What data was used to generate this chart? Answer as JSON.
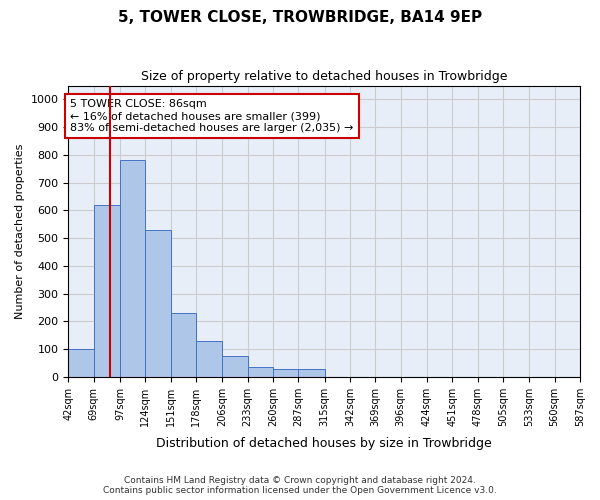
{
  "title": "5, TOWER CLOSE, TROWBRIDGE, BA14 9EP",
  "subtitle": "Size of property relative to detached houses in Trowbridge",
  "xlabel": "Distribution of detached houses by size in Trowbridge",
  "ylabel": "Number of detached properties",
  "footer_line1": "Contains HM Land Registry data © Crown copyright and database right 2024.",
  "footer_line2": "Contains public sector information licensed under the Open Government Licence v3.0.",
  "bin_labels": [
    "42sqm",
    "69sqm",
    "97sqm",
    "124sqm",
    "151sqm",
    "178sqm",
    "206sqm",
    "233sqm",
    "260sqm",
    "287sqm",
    "315sqm",
    "342sqm",
    "369sqm",
    "396sqm",
    "424sqm",
    "451sqm",
    "478sqm",
    "505sqm",
    "533sqm",
    "560sqm",
    "587sqm"
  ],
  "bar_values": [
    100,
    620,
    780,
    530,
    230,
    130,
    75,
    35,
    27,
    28,
    0,
    0,
    0,
    0,
    0,
    0,
    0,
    0,
    0,
    0
  ],
  "bar_color": "#aec6e8",
  "bar_edge_color": "#4472c4",
  "grid_color": "#cccccc",
  "bg_color": "#e8eef8",
  "annotation_text": "5 TOWER CLOSE: 86sqm\n← 16% of detached houses are smaller (399)\n83% of semi-detached houses are larger (2,035) →",
  "annotation_box_color": "#ffffff",
  "annotation_box_edge": "#cc0000",
  "vline_x": 86,
  "vline_color": "#cc0000",
  "ylim": [
    0,
    1050
  ],
  "yticks": [
    0,
    100,
    200,
    300,
    400,
    500,
    600,
    700,
    800,
    900,
    1000
  ],
  "bin_edges": [
    42,
    69,
    97,
    124,
    151,
    178,
    206,
    233,
    260,
    287,
    315,
    342,
    369,
    396,
    424,
    451,
    478,
    505,
    533,
    560,
    587
  ]
}
